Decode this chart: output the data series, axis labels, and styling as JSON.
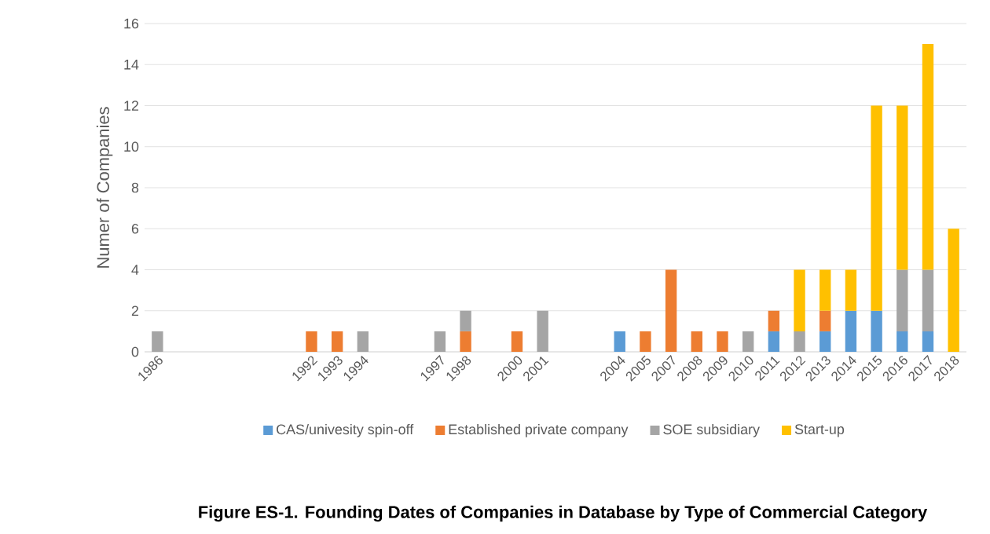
{
  "chart_data": {
    "type": "bar",
    "stacked": true,
    "title": "Figure ES-1. Founding Dates of Companies in Database by Type of Commercial Category",
    "ylabel": "Numer of Companies",
    "categories": [
      "1986",
      null,
      null,
      null,
      null,
      null,
      "1992",
      "1993",
      "1994",
      null,
      null,
      "1997",
      "1998",
      null,
      "2000",
      "2001",
      null,
      null,
      "2004",
      "2005",
      "2007",
      "2008",
      "2009",
      "2010",
      "2011",
      "2012",
      "2013",
      "2014",
      "2015",
      "2016",
      "2017",
      "2018"
    ],
    "series": [
      {
        "name": "CAS/univesity spin-off",
        "color": "#5b9bd5",
        "values": [
          null,
          null,
          null,
          null,
          null,
          null,
          null,
          null,
          null,
          null,
          null,
          null,
          null,
          null,
          null,
          null,
          null,
          null,
          1,
          null,
          null,
          null,
          null,
          null,
          1,
          null,
          1,
          2,
          2,
          1,
          1,
          null
        ]
      },
      {
        "name": "Established private company",
        "color": "#ed7d31",
        "values": [
          null,
          null,
          null,
          null,
          null,
          null,
          1,
          1,
          null,
          null,
          null,
          null,
          1,
          null,
          1,
          null,
          null,
          null,
          null,
          1,
          4,
          1,
          1,
          null,
          1,
          null,
          1,
          null,
          null,
          null,
          null,
          null
        ]
      },
      {
        "name": "SOE subsidiary",
        "color": "#a5a5a5",
        "values": [
          1,
          null,
          null,
          null,
          null,
          null,
          null,
          null,
          1,
          null,
          null,
          1,
          1,
          null,
          null,
          2,
          null,
          null,
          null,
          null,
          null,
          null,
          null,
          1,
          null,
          1,
          null,
          null,
          null,
          3,
          3,
          null
        ]
      },
      {
        "name": "Start-up",
        "color": "#ffc000",
        "values": [
          null,
          null,
          null,
          null,
          null,
          null,
          null,
          null,
          null,
          null,
          null,
          null,
          null,
          null,
          null,
          null,
          null,
          null,
          null,
          null,
          null,
          null,
          null,
          null,
          null,
          3,
          2,
          2,
          10,
          8,
          11,
          6
        ]
      }
    ],
    "ylim": [
      0,
      16
    ],
    "yticks": [
      0,
      2,
      4,
      6,
      8,
      10,
      12,
      14,
      16
    ],
    "grid": "y",
    "legend": "bottom"
  }
}
